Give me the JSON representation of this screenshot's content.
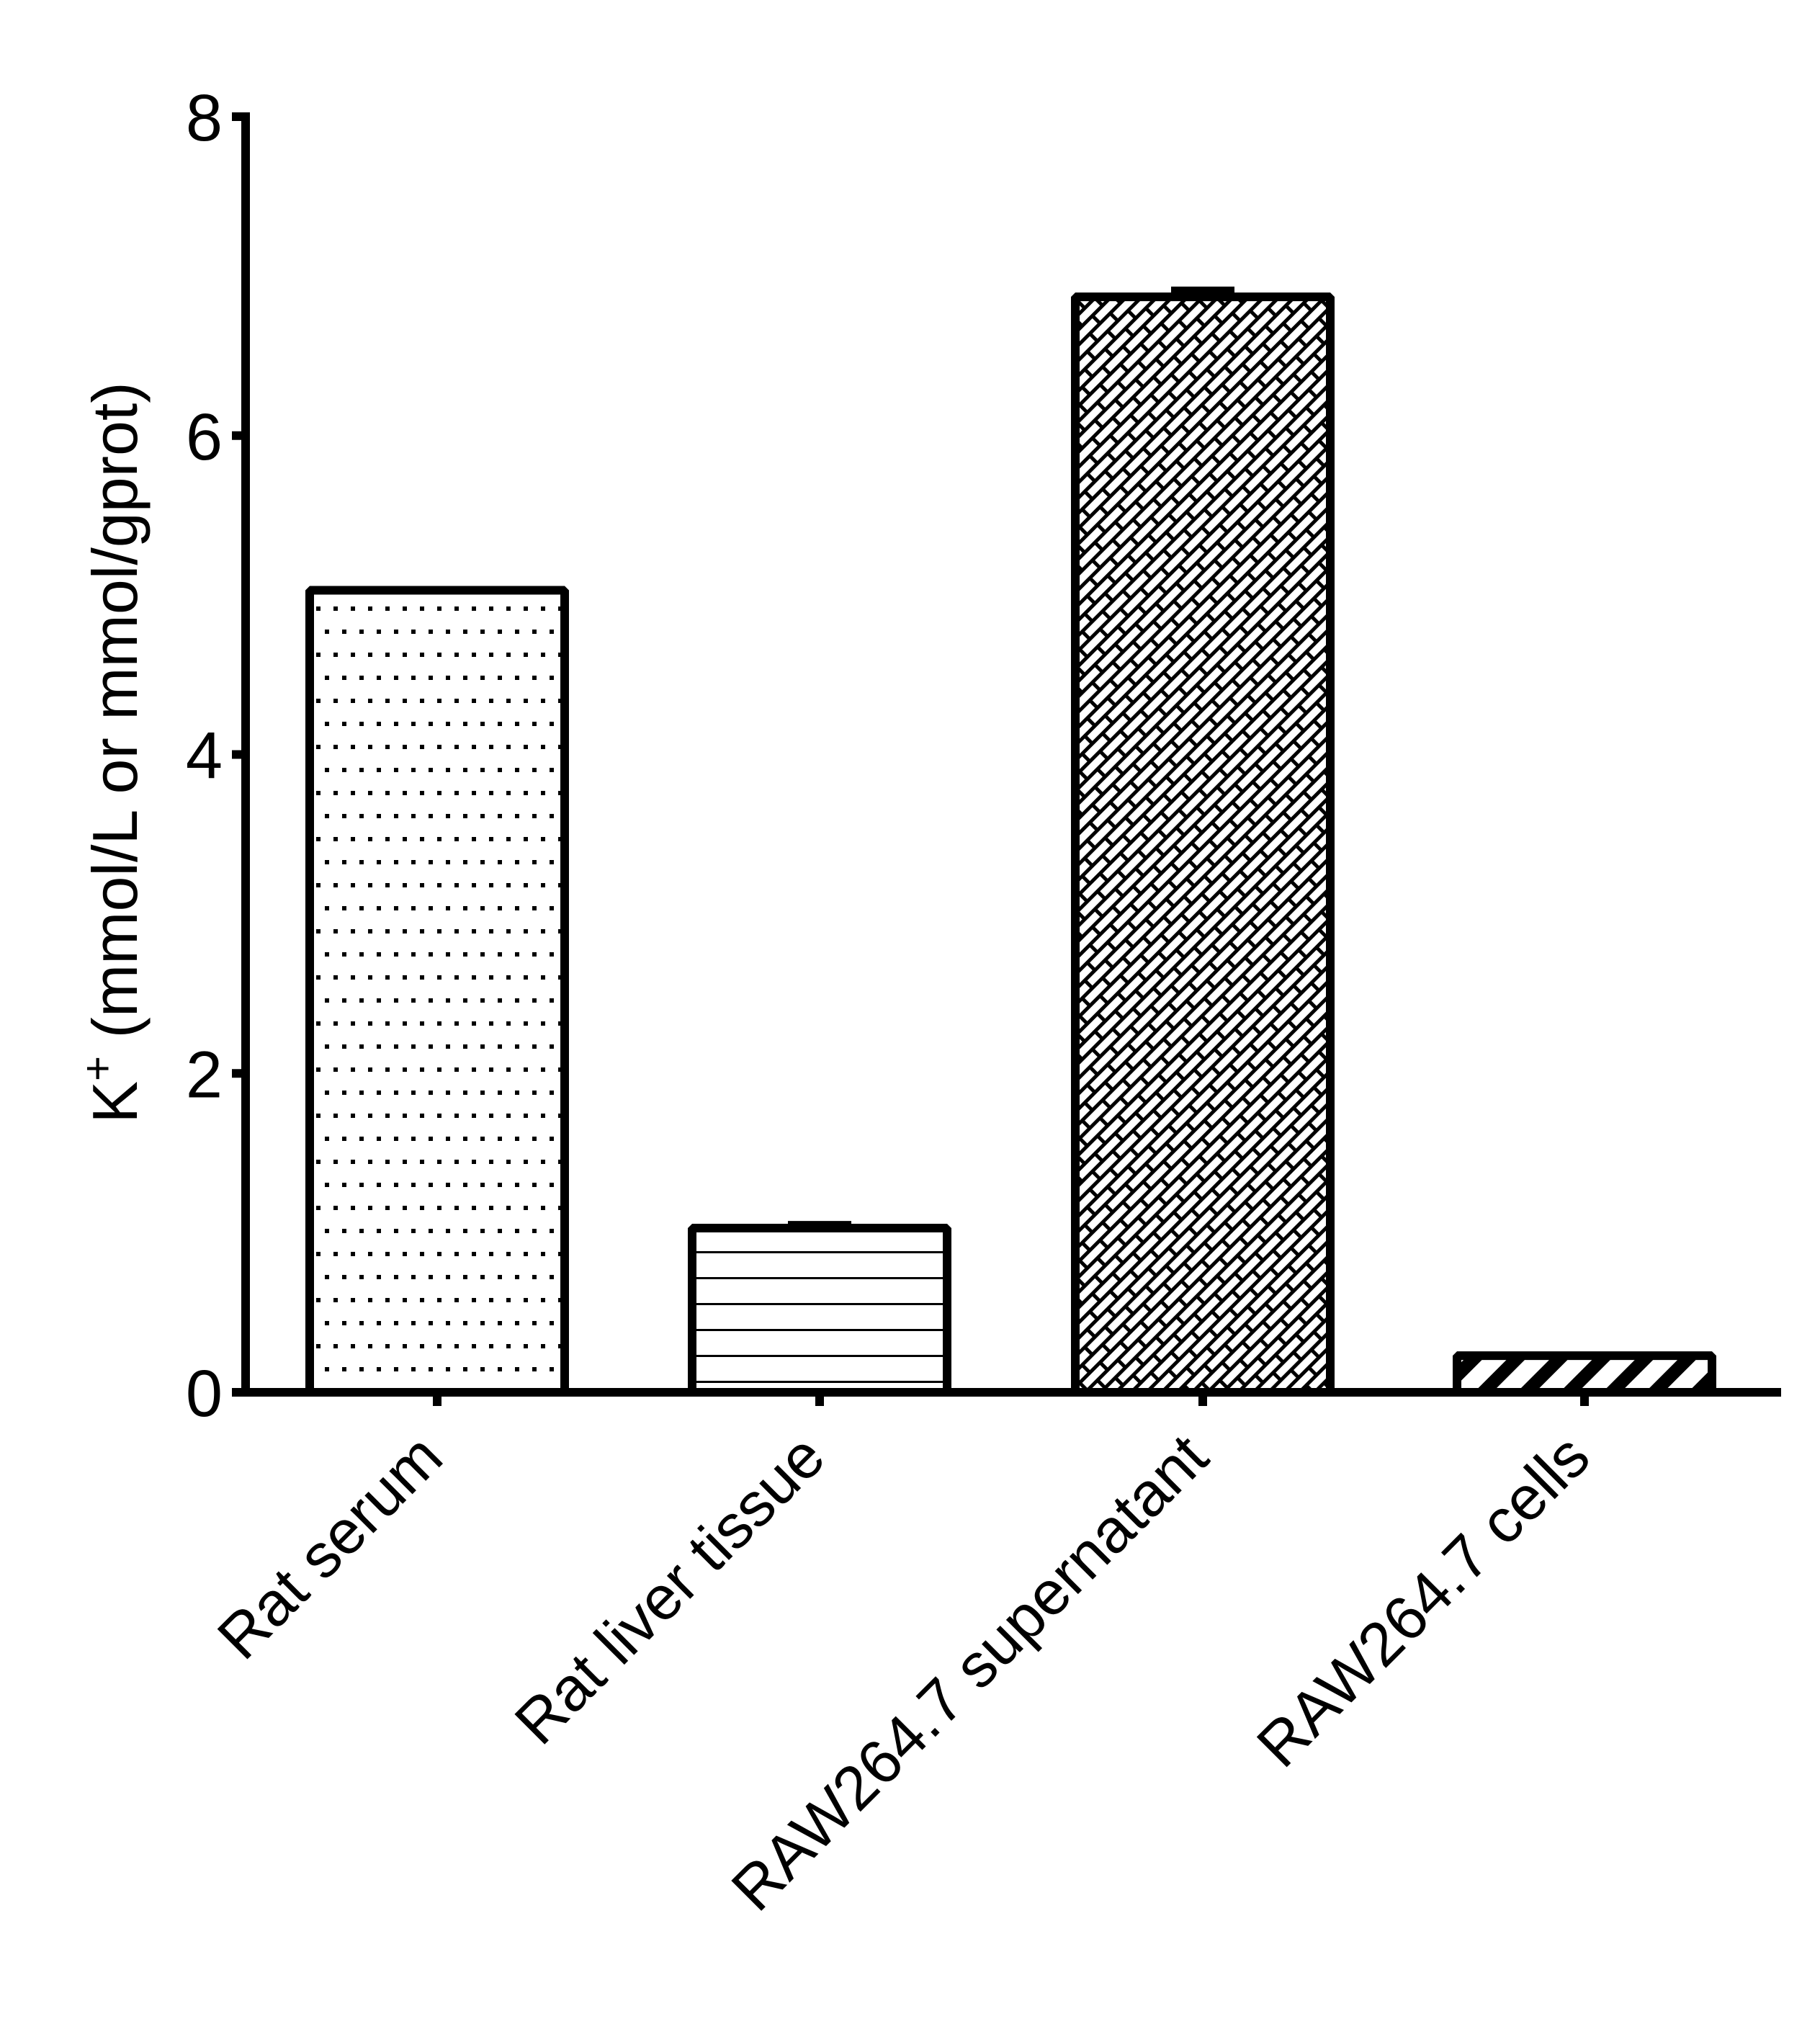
{
  "chart_data": {
    "type": "bar",
    "title": "",
    "xlabel": "",
    "ylabel": "K+ (mmol/L or mmol/gprot)",
    "ylabel_parts": {
      "base": "K",
      "sup": "+",
      "rest": " (mmol/L or mmol/gprot)"
    },
    "ylim": [
      0,
      8
    ],
    "yticks": [
      0,
      2,
      4,
      6,
      8
    ],
    "grid": false,
    "legend": null,
    "categories": [
      "Rat serum",
      "Rat liver tissue",
      "RAW264.7 supernatant",
      "RAW264.7 cells"
    ],
    "values": [
      5.03,
      1.03,
      6.87,
      0.23
    ],
    "errors": [
      0.01,
      0.04,
      0.06,
      0.0
    ],
    "patterns": [
      "dots",
      "horizontal-lines",
      "diagonal-brick",
      "diagonal-stripes"
    ],
    "colors": {
      "fill": "#ffffff",
      "stroke": "#000000",
      "axis": "#000000"
    },
    "x_label_rotation": -45
  }
}
